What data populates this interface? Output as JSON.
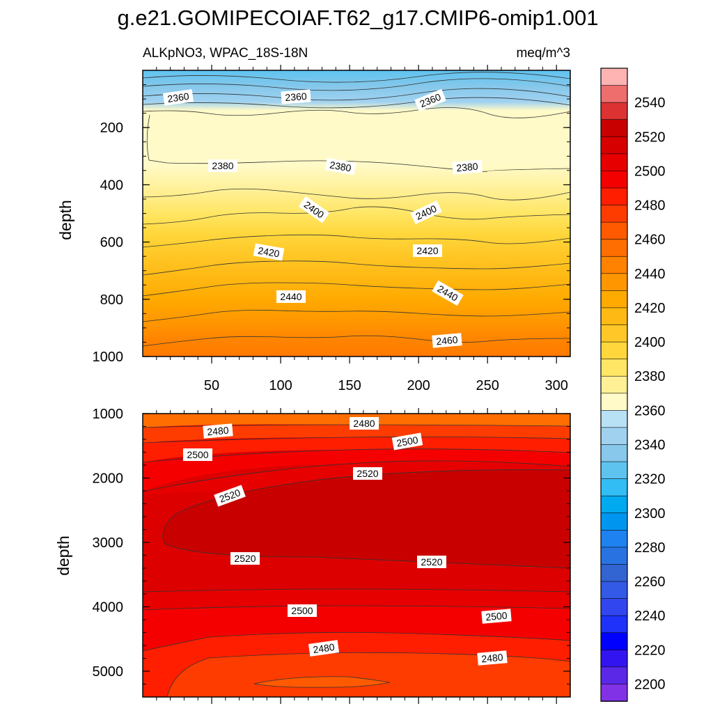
{
  "title": "g.e21.GOMIPECOIAF.T62_g17.CMIP6-omip1.001",
  "subtitle_left": "ALKpNO3, WPAC_18S-18N",
  "subtitle_right": "meq/m^3",
  "chart_data": [
    {
      "type": "heatmap",
      "panel": "upper",
      "xlabel": "",
      "ylabel": "depth",
      "xlim": [
        0,
        310
      ],
      "ylim": [
        1000,
        0
      ],
      "x_ticks": [
        50,
        100,
        150,
        200,
        250,
        300
      ],
      "y_ticks": [
        200,
        400,
        600,
        800,
        1000
      ],
      "contour_levels": [
        2360,
        2370,
        2380,
        2390,
        2400,
        2410,
        2420,
        2430,
        2440,
        2450,
        2460
      ],
      "contour_labels": [
        "2360",
        "2360",
        "2360",
        "2380",
        "2380",
        "2380",
        "2400",
        "2400",
        "2420",
        "2420",
        "2440",
        "2440",
        "2460"
      ],
      "contour_depths": {
        "2360": 90,
        "2370": 150,
        "2380": 335,
        "2390": 440,
        "2400": 520,
        "2410": 590,
        "2420": 660,
        "2430": 735,
        "2440": 810,
        "2450": 890,
        "2460": 960
      }
    },
    {
      "type": "heatmap",
      "panel": "lower",
      "xlabel": "",
      "ylabel": "depth",
      "xlim": [
        0,
        310
      ],
      "ylim": [
        5400,
        1000
      ],
      "y_ticks": [
        1000,
        2000,
        3000,
        4000,
        5000
      ],
      "contour_levels": [
        2470,
        2480,
        2490,
        2500,
        2510,
        2520
      ],
      "contour_labels": [
        "2480",
        "2480",
        "2500",
        "2500",
        "2520",
        "2520",
        "2520",
        "2520",
        "2500",
        "2500",
        "2480",
        "2480"
      ]
    }
  ],
  "colorbar": {
    "labels": [
      "2540",
      "2520",
      "2500",
      "2480",
      "2460",
      "2440",
      "2420",
      "2400",
      "2380",
      "2360",
      "2340",
      "2320",
      "2300",
      "2280",
      "2260",
      "2240",
      "2220",
      "2200"
    ],
    "colors": [
      "#FFB4B4",
      "#EE6E6E",
      "#DC3232",
      "#C80000",
      "#D70000",
      "#E60000",
      "#F50000",
      "#FF1E00",
      "#FF3C00",
      "#FF5A00",
      "#FF6E00",
      "#FF8200",
      "#FF9600",
      "#FFAA00",
      "#FFB914",
      "#FFC828",
      "#FFD73C",
      "#FFE664",
      "#FFF096",
      "#FFFAC8",
      "#B9E1F5",
      "#A0D2F0",
      "#87C8EB",
      "#5FC3F0",
      "#32BEF5",
      "#00AAF0",
      "#0096F0",
      "#1E82F0",
      "#2873E1",
      "#3264D2",
      "#325AE6",
      "#3246F0",
      "#1E32FA",
      "#0000FF",
      "#3214F0",
      "#5A28E6",
      "#8232E6"
    ]
  }
}
